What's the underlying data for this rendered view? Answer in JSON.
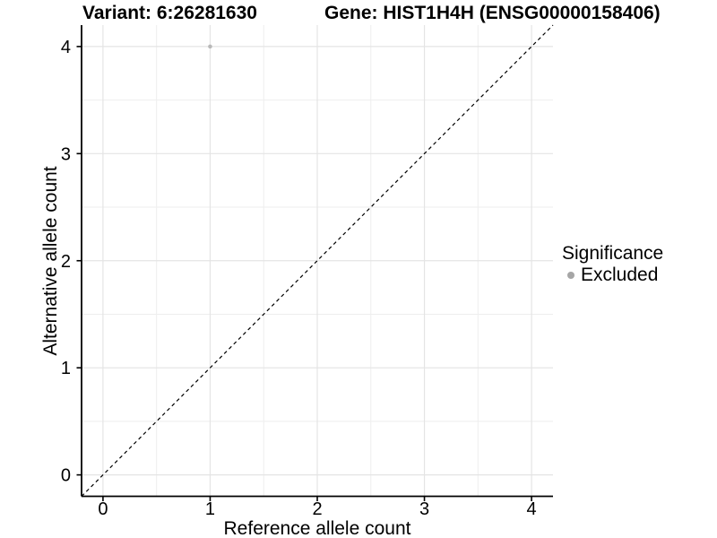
{
  "header": {
    "variant_title": "Variant: 6:26281630",
    "gene_title": "Gene: HIST1H4H (ENSG00000158406)"
  },
  "chart_data": {
    "type": "scatter",
    "title": "Variant: 6:26281630 / Gene: HIST1H4H (ENSG00000158406)",
    "xlabel": "Reference allele count",
    "ylabel": "Alternative allele count",
    "xlim": [
      -0.2,
      4.2
    ],
    "ylim": [
      -0.2,
      4.2
    ],
    "x_ticks": [
      0,
      1,
      2,
      3,
      4
    ],
    "y_ticks": [
      0,
      1,
      2,
      3,
      4
    ],
    "x_minor_ticks": [
      0.5,
      1.5,
      2.5,
      3.5
    ],
    "y_minor_ticks": [
      0.5,
      1.5,
      2.5,
      3.5
    ],
    "grid": "major+minor",
    "legend_position": "right",
    "series": [
      {
        "name": "Excluded",
        "color": "#b9b9b9",
        "points": [
          {
            "x": 1,
            "y": 4
          }
        ]
      }
    ],
    "reference_line": {
      "type": "identity",
      "slope": 1,
      "intercept": 0,
      "line_style": "dashed",
      "color": "#000000"
    }
  },
  "legend": {
    "title": "Significance",
    "items": [
      {
        "label": "Excluded",
        "color": "#a6a6a6"
      }
    ]
  },
  "colors": {
    "background": "#ffffff",
    "grid_major": "#e4e4e4",
    "grid_minor": "#eeeeee",
    "axis_line": "#000000",
    "tick_text": "#000000",
    "point": "#b9b9b9",
    "legend_swatch": "#a6a6a6"
  }
}
